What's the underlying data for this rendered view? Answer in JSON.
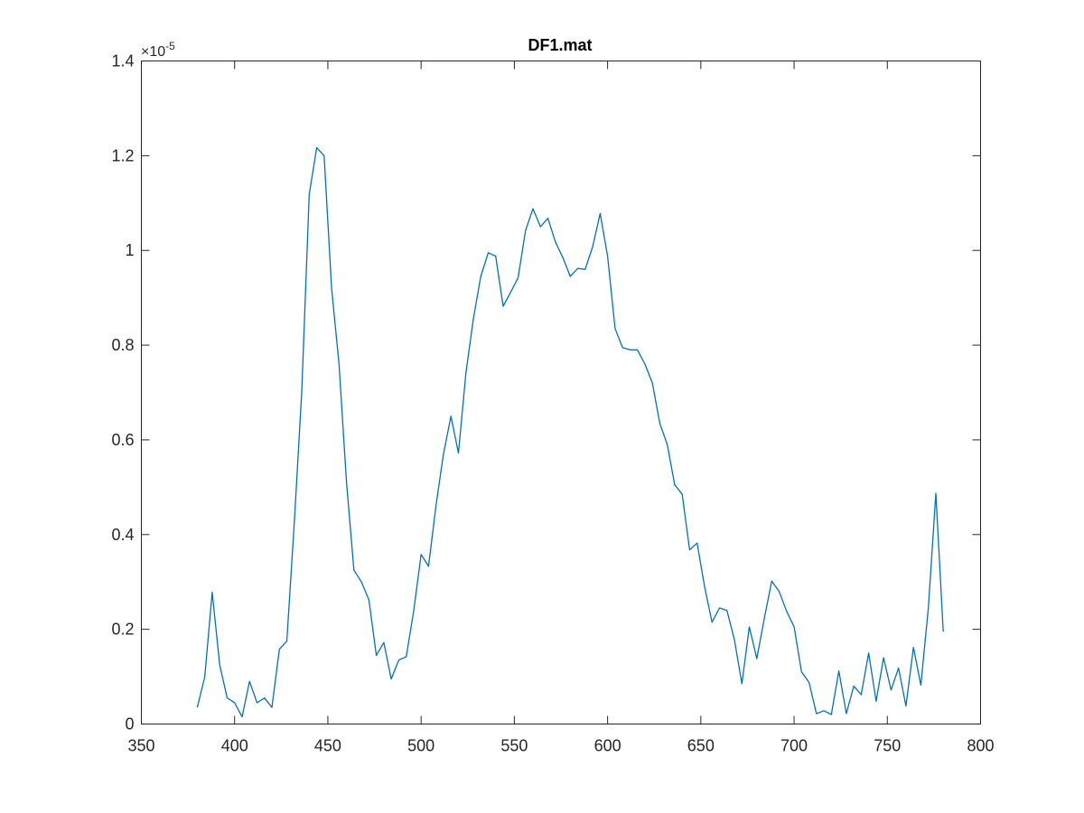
{
  "chart_data": {
    "type": "line",
    "title": "DF1.mat",
    "xlabel": "",
    "ylabel": "",
    "exponent_label": "×10",
    "exponent_power": "-5",
    "xlim": [
      350,
      800
    ],
    "ylim": [
      0,
      1.4
    ],
    "xticks": [
      350,
      400,
      450,
      500,
      550,
      600,
      650,
      700,
      750,
      800
    ],
    "xtick_labels": [
      "350",
      "400",
      "450",
      "500",
      "550",
      "600",
      "650",
      "700",
      "750",
      "800"
    ],
    "yticks": [
      0,
      0.2,
      0.4,
      0.6,
      0.8,
      1,
      1.2,
      1.4
    ],
    "ytick_labels": [
      "0",
      "0.2",
      "0.4",
      "0.6",
      "0.8",
      "1",
      "1.2",
      "1.4"
    ],
    "grid": false,
    "line_color": "#0072BD",
    "series": [
      {
        "x": [
          380,
          384,
          388,
          392,
          396,
          400,
          404,
          408,
          412,
          416,
          420,
          424,
          428,
          432,
          436,
          440,
          444,
          448,
          452,
          456,
          460,
          464,
          468,
          472,
          476,
          480,
          484,
          488,
          492,
          496,
          500,
          504,
          508,
          512,
          516,
          520,
          524,
          528,
          532,
          536,
          540,
          544,
          548,
          552,
          556,
          560,
          564,
          568,
          572,
          576,
          580,
          584,
          588,
          592,
          596,
          600,
          604,
          608,
          612,
          616,
          620,
          624,
          628,
          632,
          636,
          640,
          644,
          648,
          652,
          656,
          660,
          664,
          668,
          672,
          676,
          680,
          684,
          688,
          692,
          696,
          700,
          704,
          708,
          712,
          716,
          720,
          724,
          728,
          732,
          736,
          740,
          744,
          748,
          752,
          756,
          760,
          764,
          768,
          772,
          776,
          780
        ],
        "values": [
          0.035,
          0.1,
          0.278,
          0.125,
          0.055,
          0.045,
          0.015,
          0.09,
          0.045,
          0.055,
          0.035,
          0.158,
          0.175,
          0.425,
          0.7,
          1.118,
          1.217,
          1.2,
          0.92,
          0.76,
          0.51,
          0.325,
          0.3,
          0.262,
          0.145,
          0.172,
          0.095,
          0.135,
          0.142,
          0.238,
          0.358,
          0.333,
          0.462,
          0.57,
          0.65,
          0.572,
          0.74,
          0.855,
          0.945,
          0.995,
          0.988,
          0.882,
          0.912,
          0.942,
          1.042,
          1.088,
          1.05,
          1.068,
          1.018,
          0.985,
          0.945,
          0.962,
          0.96,
          1.008,
          1.078,
          0.988,
          0.835,
          0.795,
          0.79,
          0.79,
          0.76,
          0.72,
          0.635,
          0.59,
          0.505,
          0.485,
          0.368,
          0.382,
          0.29,
          0.215,
          0.245,
          0.24,
          0.178,
          0.085,
          0.205,
          0.138,
          0.222,
          0.302,
          0.28,
          0.238,
          0.205,
          0.11,
          0.088,
          0.022,
          0.028,
          0.02,
          0.112,
          0.022,
          0.08,
          0.062,
          0.15,
          0.048,
          0.14,
          0.072,
          0.118,
          0.038,
          0.162,
          0.082,
          0.245,
          0.487,
          0.195
        ]
      }
    ]
  }
}
